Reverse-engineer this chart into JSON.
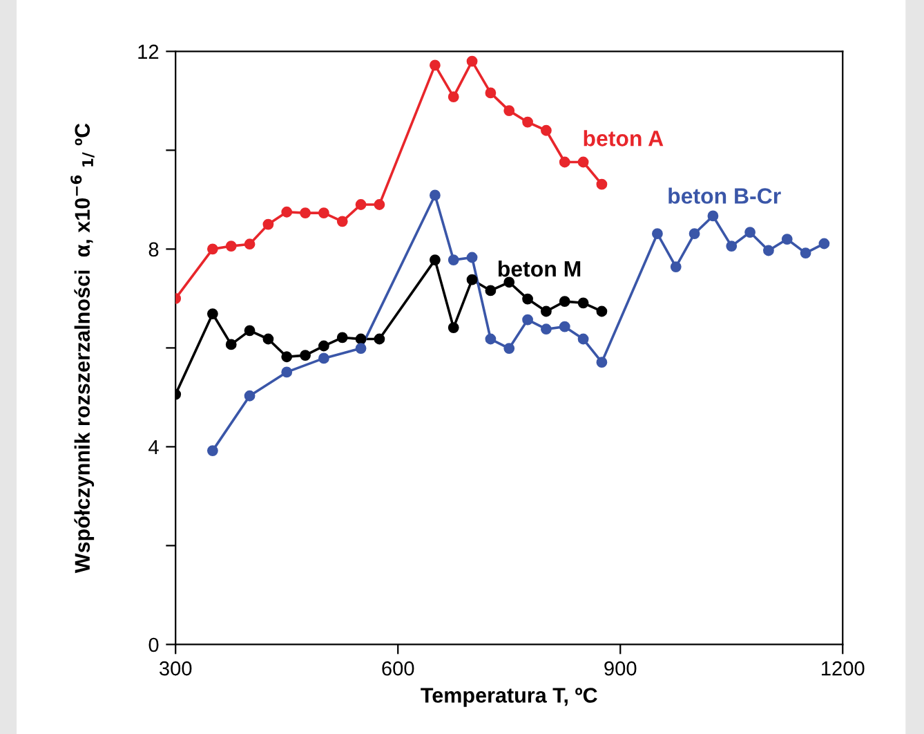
{
  "chart_data": {
    "type": "line",
    "xlabel": "Temperatura T, ºC",
    "ylabel": "Współczynnik rozszerzalności  α, x10$^{−6}$ $_{1/}$ ºC",
    "xlim": [
      300,
      1200
    ],
    "xticks": [
      300,
      600,
      900,
      1200
    ],
    "ylim": [
      0,
      12
    ],
    "yticks": [
      0,
      {
        "value": 2,
        "label": null
      },
      4,
      {
        "value": 6,
        "label": null
      },
      8,
      {
        "value": 10,
        "label": null
      },
      12
    ],
    "grid": false,
    "legend": false,
    "marker": "circle",
    "line_style": "solid",
    "series": [
      {
        "name": "beton A",
        "color": "#e8262b",
        "x": [
          300,
          350,
          375,
          400,
          425,
          450,
          475,
          500,
          525,
          550,
          575,
          650,
          675,
          700,
          725,
          750,
          775,
          800,
          825,
          850,
          875
        ],
        "values": [
          7.0,
          8.0,
          8.06,
          8.1,
          8.5,
          8.75,
          8.73,
          8.73,
          8.56,
          8.9,
          8.9,
          11.72,
          11.08,
          11.8,
          11.16,
          10.8,
          10.57,
          10.4,
          9.76,
          9.76,
          9.31
        ]
      },
      {
        "name": "beton M",
        "color": "#000000",
        "x": [
          300,
          350,
          375,
          400,
          425,
          450,
          475,
          500,
          525,
          550,
          575,
          650,
          675,
          700,
          725,
          750,
          775,
          800,
          825,
          850,
          875
        ],
        "values": [
          5.06,
          6.69,
          6.07,
          6.35,
          6.18,
          5.82,
          5.85,
          6.04,
          6.21,
          6.18,
          6.18,
          7.78,
          6.41,
          7.38,
          7.16,
          7.33,
          6.99,
          6.74,
          6.94,
          6.91,
          6.74
        ]
      },
      {
        "name": "beton B-Cr",
        "color": "#3a56a8",
        "x": [
          350,
          400,
          450,
          500,
          550,
          650,
          675,
          700,
          725,
          750,
          775,
          800,
          825,
          850,
          875,
          950,
          975,
          1000,
          1025,
          1050,
          1075,
          1100,
          1125,
          1150,
          1175
        ],
        "values": [
          3.92,
          5.03,
          5.51,
          5.79,
          5.99,
          9.09,
          7.78,
          7.83,
          6.18,
          5.99,
          6.57,
          6.38,
          6.43,
          6.18,
          5.71,
          8.31,
          7.64,
          8.31,
          8.67,
          8.06,
          8.34,
          7.97,
          8.2,
          7.92,
          8.11
        ]
      }
    ]
  }
}
